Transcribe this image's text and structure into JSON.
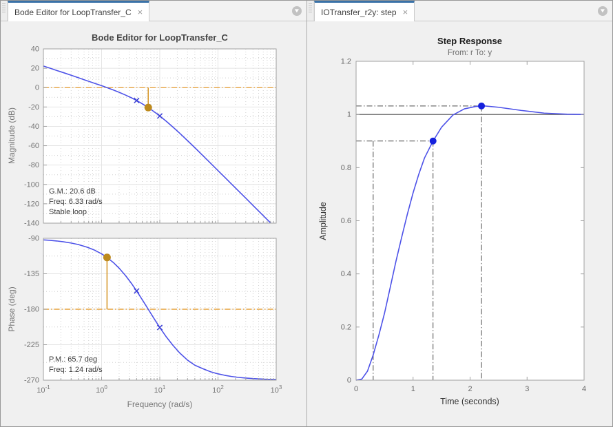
{
  "left_panel": {
    "tab_label": "Bode Editor for LoopTransfer_C"
  },
  "right_panel": {
    "tab_label": "IOTransfer_r2y: step"
  },
  "icons": {
    "close": "×",
    "overflow_chevron": "▼"
  },
  "colors": {
    "tab_accent": "#3a72a8",
    "curve_blue": "#4d52e8",
    "pole_marker_blue": "#3a3fd6",
    "step_marker_blue": "#1520dd",
    "orange_line": "#e6a23c",
    "orange_stem": "#d89a30",
    "orange_marker": "#bd8a1d",
    "guide_gray": "#4a4a4a",
    "steady_state": "#4d4d4d",
    "grid_major": "#e4e4e4",
    "grid_minor": "#cfcfcf",
    "axes_box": "#a0a0a0",
    "tick_label_gray": "#757575",
    "step_tick_label": "#696969",
    "annotation_text": "#3d3d3d"
  },
  "chart_data": [
    {
      "id": "bode-magnitude",
      "type": "line",
      "title": "Bode Editor for LoopTransfer_C",
      "ylabel": "Magnitude (dB)",
      "xscale": "log",
      "xlim": [
        0.1,
        1000
      ],
      "ylim": [
        -140,
        40
      ],
      "yticks": [
        40,
        20,
        0,
        -20,
        -40,
        -60,
        -80,
        -100,
        -120,
        -140
      ],
      "xtick_exponents": [
        -1,
        0,
        1,
        2,
        3
      ],
      "grid": true,
      "series": [
        {
          "name": "open-loop-magnitude",
          "x": [
            0.1,
            0.13,
            0.17,
            0.22,
            0.3,
            0.4,
            0.55,
            0.75,
            1.0,
            1.24,
            1.6,
            2.0,
            2.6,
            3.3,
            4.0,
            5.0,
            6.33,
            8.0,
            10,
            13,
            17,
            22,
            30,
            40,
            55,
            75,
            100,
            130,
            170,
            220,
            300,
            400,
            550,
            700,
            810
          ],
          "y": [
            22.3,
            20.1,
            17.7,
            15.5,
            12.8,
            10.2,
            7.3,
            4.5,
            2.0,
            0,
            -2.5,
            -4.8,
            -7.8,
            -10.7,
            -13.3,
            -16.7,
            -20.6,
            -24.9,
            -29.3,
            -34.9,
            -41.0,
            -47.1,
            -54.8,
            -62.0,
            -70.2,
            -78.2,
            -85.7,
            -92.5,
            -99.5,
            -106.2,
            -114.2,
            -121.7,
            -130.0,
            -136.3,
            -140.0
          ]
        }
      ],
      "pole_markers": [
        {
          "x": 4,
          "y": -13.3
        },
        {
          "x": 10,
          "y": -29.3
        }
      ],
      "reference_line_y": 0,
      "margin_stem": {
        "x": 6.33,
        "from": 0,
        "to": -20.6
      },
      "annotations": [
        "G.M.: 20.6 dB",
        "Freq: 6.33 rad/s",
        "Stable loop"
      ]
    },
    {
      "id": "bode-phase",
      "type": "line",
      "ylabel": "Phase (deg)",
      "xlabel": "Frequency (rad/s)",
      "xscale": "log",
      "xlim": [
        0.1,
        1000
      ],
      "ylim": [
        -270,
        -90
      ],
      "yticks": [
        -90,
        -135,
        -180,
        -225,
        -270
      ],
      "xtick_exponents": [
        -1,
        0,
        1,
        2,
        3
      ],
      "grid": true,
      "series": [
        {
          "name": "open-loop-phase",
          "x": [
            0.1,
            0.13,
            0.17,
            0.22,
            0.3,
            0.4,
            0.55,
            0.75,
            1.0,
            1.24,
            1.6,
            2.0,
            2.6,
            3.3,
            4.0,
            5.0,
            6.33,
            8.0,
            10,
            13,
            17,
            22,
            30,
            40,
            55,
            75,
            100,
            130,
            170,
            220,
            300,
            400,
            550,
            700,
            1000
          ],
          "y": [
            -92.0,
            -92.6,
            -93.4,
            -94.4,
            -96.0,
            -98.0,
            -101.0,
            -104.9,
            -109.7,
            -114.3,
            -120.9,
            -127.9,
            -137.6,
            -147.8,
            -156.8,
            -167.9,
            -180.0,
            -192.1,
            -203.2,
            -215.3,
            -226.2,
            -235.5,
            -244.6,
            -251.0,
            -255.5,
            -259.4,
            -262.0,
            -263.8,
            -265.3,
            -266.4,
            -267.3,
            -268.0,
            -268.5,
            -268.9,
            -269.2
          ]
        }
      ],
      "pole_markers": [
        {
          "x": 4,
          "y": -156.8
        },
        {
          "x": 10,
          "y": -203.2
        }
      ],
      "reference_line_y": -180,
      "margin_stem": {
        "x": 1.24,
        "from": -180,
        "to": -114.3
      },
      "annotations": [
        "P.M.: 65.7 deg",
        "Freq: 1.24 rad/s"
      ]
    },
    {
      "id": "step-response",
      "type": "line",
      "title": "Step Response",
      "subtitle": "From: r  To: y",
      "xlabel": "Time (seconds)",
      "ylabel": "Amplitude",
      "xlim": [
        0,
        4
      ],
      "ylim": [
        0,
        1.2
      ],
      "xticks": [
        0,
        1,
        2,
        3,
        4
      ],
      "yticks": [
        0,
        0.2,
        0.4,
        0.6,
        0.8,
        1,
        1.2
      ],
      "grid": false,
      "series": [
        {
          "name": "closed-loop-step",
          "x": [
            0,
            0.1,
            0.2,
            0.3,
            0.4,
            0.5,
            0.6,
            0.7,
            0.8,
            0.9,
            1.0,
            1.1,
            1.2,
            1.35,
            1.5,
            1.7,
            1.9,
            2.1,
            2.25,
            2.5,
            2.9,
            3.3,
            3.7,
            4.0
          ],
          "y": [
            0,
            0.004,
            0.034,
            0.095,
            0.17,
            0.253,
            0.35,
            0.448,
            0.538,
            0.625,
            0.705,
            0.775,
            0.836,
            0.9,
            0.952,
            0.998,
            1.021,
            1.03,
            1.032,
            1.027,
            1.015,
            1.005,
            1.001,
            1.0
          ]
        }
      ],
      "characteristic_markers": [
        {
          "name": "rise-time-marker",
          "x": 1.35,
          "y": 0.9
        },
        {
          "name": "peak-response-marker",
          "x": 2.2,
          "y": 1.032
        }
      ],
      "guides": {
        "rise_start_x": 0.3,
        "rise_end": {
          "x": 1.35,
          "y": 0.9
        },
        "peak": {
          "x": 2.2,
          "y": 1.032
        },
        "steady_state_y": 1.0
      }
    }
  ]
}
